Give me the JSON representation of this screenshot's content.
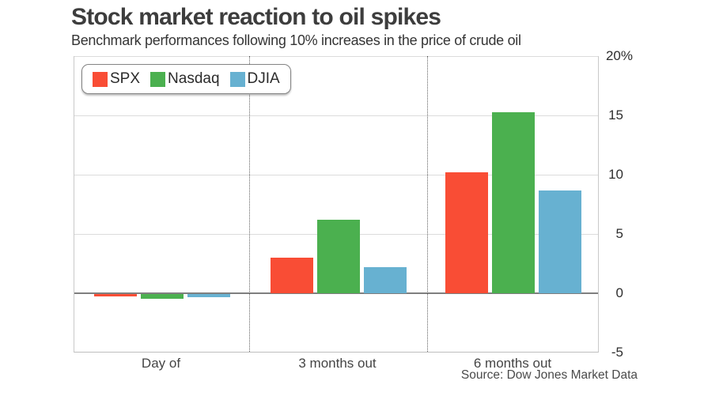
{
  "header": {
    "title": "Stock market reaction to oil spikes",
    "subtitle": "Benchmark performances following 10% increases in the price of crude oil"
  },
  "legend": {
    "items": [
      {
        "label": "SPX",
        "color": "#f94d35"
      },
      {
        "label": "Nasdaq",
        "color": "#4bb04f"
      },
      {
        "label": "DJIA",
        "color": "#67b1d1"
      }
    ]
  },
  "source": "Source: Dow Jones Market Data",
  "chart_data": {
    "type": "bar",
    "title": "Stock market reaction to oil spikes",
    "subtitle": "Benchmark performances following 10% increases in the price of crude oil",
    "categories": [
      "Day of",
      "3 months out",
      "6 months out"
    ],
    "series": [
      {
        "name": "SPX",
        "color": "#f94d35",
        "values": [
          -0.2,
          3.0,
          10.2
        ]
      },
      {
        "name": "Nasdaq",
        "color": "#4bb04f",
        "values": [
          -0.4,
          6.2,
          15.3
        ]
      },
      {
        "name": "DJIA",
        "color": "#67b1d1",
        "values": [
          -0.25,
          2.2,
          8.7
        ]
      }
    ],
    "xlabel": "",
    "ylabel": "",
    "unit": "%",
    "ylim": [
      -5,
      20
    ],
    "y_ticks": [
      "20%",
      "15",
      "10",
      "5",
      "0",
      "-5"
    ],
    "y_tick_values": [
      20,
      15,
      10,
      5,
      0,
      -5
    ],
    "grid": true,
    "legend_position": "top-left",
    "axis_labels_side": "right"
  },
  "colors": {
    "grid": "#dcdcdc",
    "zero_line": "#7f7f7f",
    "text_dark": "#3d3d3d"
  }
}
